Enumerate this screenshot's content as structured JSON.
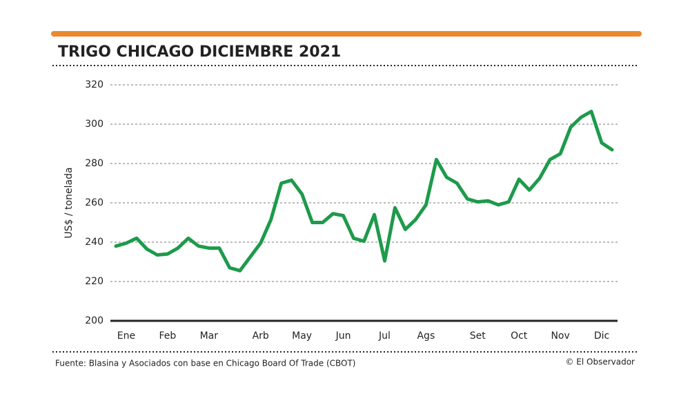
{
  "chart_data": {
    "type": "line",
    "title": "TRIGO CHICAGO DICIEMBRE 2021",
    "y_label": "US$ / tonelada",
    "source": "Fuente: Blasina y Asociados con base en Chicago Board Of Trade (CBOT)",
    "credit": "© El Observador",
    "categories": [
      null,
      "Ene",
      null,
      null,
      null,
      "Feb",
      null,
      null,
      null,
      "Mar",
      null,
      null,
      null,
      null,
      "Arb",
      null,
      null,
      null,
      "May",
      null,
      null,
      null,
      "Jun",
      null,
      null,
      null,
      "Jul",
      null,
      null,
      null,
      "Ags",
      null,
      null,
      null,
      null,
      "Set",
      null,
      null,
      null,
      "Oct",
      null,
      null,
      null,
      "Nov",
      null,
      null,
      null,
      "Dic",
      null
    ],
    "series": [
      {
        "name": "Trigo",
        "color": "#1e9a4b",
        "values": [
          238,
          239.5,
          242,
          236.5,
          233.5,
          234,
          237,
          242,
          238,
          237,
          237,
          227,
          225.5,
          232.5,
          239.5,
          251.5,
          270,
          271.5,
          264.5,
          250,
          250,
          254.5,
          253.5,
          242,
          240.5,
          254,
          230.5,
          257.5,
          246.5,
          251.5,
          259,
          282,
          273,
          270,
          262,
          260.5,
          261,
          259,
          260.5,
          272,
          266.5,
          272.5,
          282,
          285,
          298.5,
          303.5,
          306.5,
          290.5,
          287
        ]
      }
    ],
    "ylim": [
      200,
      320
    ],
    "yticks": [
      200,
      220,
      240,
      260,
      280,
      300,
      320
    ],
    "grid": true
  }
}
